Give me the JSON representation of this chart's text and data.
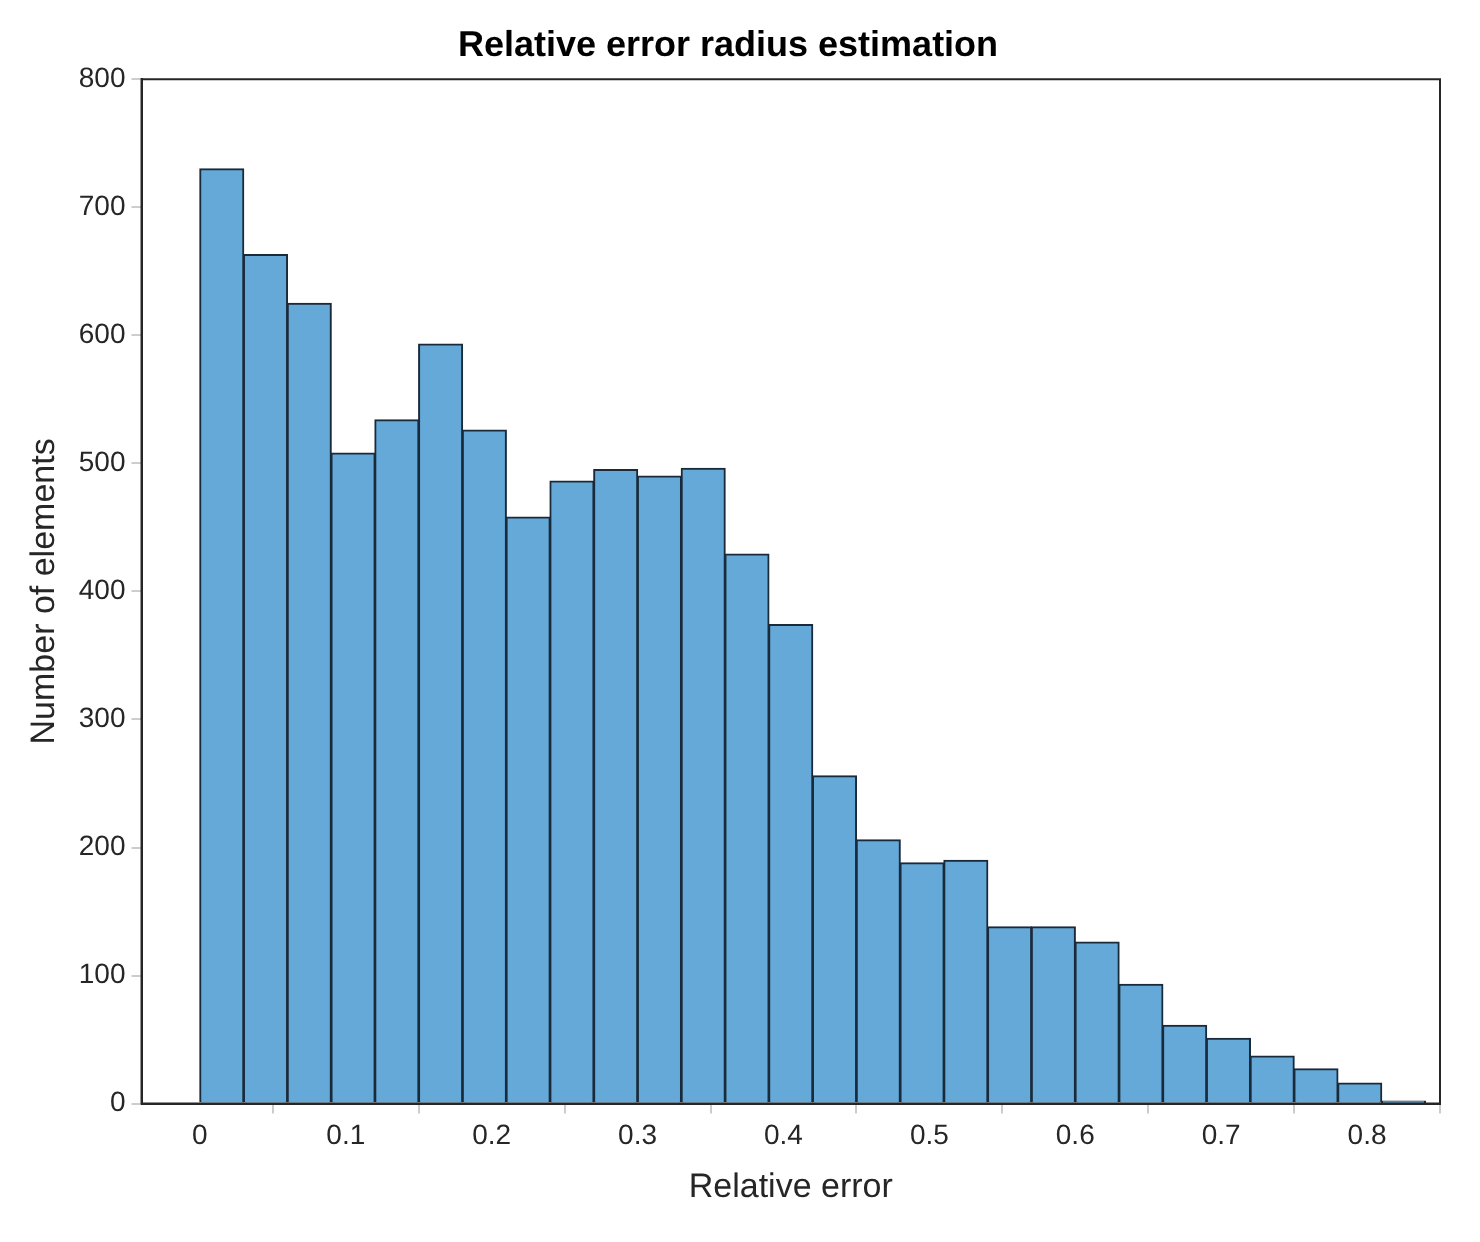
{
  "chart_data": {
    "type": "histogram",
    "title": "Relative error radius estimation",
    "xlabel": "Relative error",
    "ylabel": "Number of elements",
    "bins": [
      0,
      0.03,
      0.06,
      0.09,
      0.12,
      0.15,
      0.18,
      0.21,
      0.24,
      0.27,
      0.3,
      0.33,
      0.36,
      0.39,
      0.42,
      0.45,
      0.48,
      0.51,
      0.54,
      0.57,
      0.6,
      0.63,
      0.66,
      0.69,
      0.72,
      0.75,
      0.78,
      0.81,
      0.84
    ],
    "values": [
      730,
      663,
      625,
      508,
      534,
      593,
      526,
      458,
      486,
      495,
      490,
      496,
      429,
      374,
      256,
      206,
      188,
      190,
      138,
      138,
      126,
      93,
      61,
      51,
      37,
      27,
      16,
      2
    ],
    "color": "#64a9d8",
    "xlim": [
      -0.04,
      0.85
    ],
    "xticks": [
      0,
      0.1,
      0.2,
      0.3,
      0.4,
      0.5,
      0.6,
      0.7,
      0.8
    ],
    "ylim": [
      0,
      800
    ],
    "yticks": [
      0,
      100,
      200,
      300,
      400,
      500,
      600,
      700,
      800
    ],
    "grid": false
  }
}
